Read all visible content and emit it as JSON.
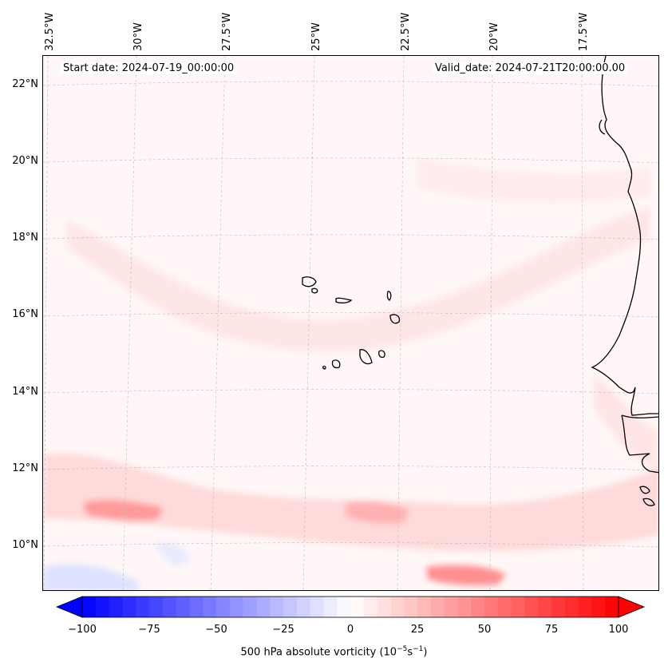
{
  "map": {
    "region": "Cape Verde / West Africa coast",
    "start_date": "Start date: 2024-07-19_00:00:00",
    "valid_date": "Valid_date: 2024-07-21T20:00:00.00",
    "lon_labels": [
      "32.5°W",
      "30°W",
      "27.5°W",
      "25°W",
      "22.5°W",
      "20°W",
      "17.5°W"
    ],
    "lat_labels": [
      "22°N",
      "20°N",
      "18°N",
      "16°N",
      "14°N",
      "12°N",
      "10°N"
    ],
    "lon_extent": [
      -33,
      -16
    ],
    "lat_extent": [
      8.8,
      22.8
    ]
  },
  "colorbar": {
    "label_prefix": "500 hPa absolute vorticity (10",
    "label_exp1": "−5",
    "label_mid": "s",
    "label_exp2": "−1",
    "label_suffix": ")",
    "ticks": [
      "−100",
      "−75",
      "−50",
      "−25",
      "0",
      "25",
      "50",
      "75",
      "100"
    ],
    "range": [
      -100,
      100
    ],
    "min_color": "#0000ff",
    "mid_color": "#ffffff",
    "max_color": "#ff0000",
    "extend": "both"
  }
}
